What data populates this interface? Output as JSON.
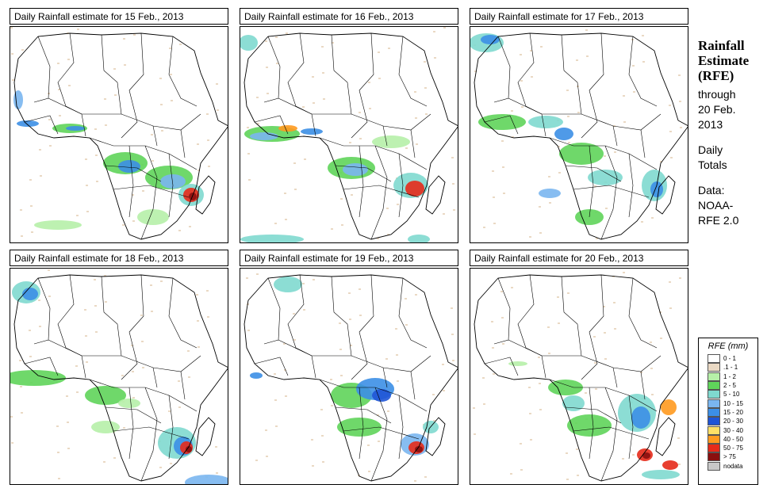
{
  "panels": [
    {
      "title": "Daily Rainfall estimate for  15 Feb., 2013",
      "key": "p15"
    },
    {
      "title": "Daily Rainfall estimate for  16 Feb., 2013",
      "key": "p16"
    },
    {
      "title": "Daily Rainfall estimate for  17 Feb., 2013",
      "key": "p17"
    },
    {
      "title": "Daily Rainfall estimate for  18 Feb., 2013",
      "key": "p18"
    },
    {
      "title": "Daily Rainfall estimate for  19 Feb., 2013",
      "key": "p19"
    },
    {
      "title": "Daily Rainfall estimate for  20 Feb., 2013",
      "key": "p20"
    }
  ],
  "side": {
    "title_line1": "Rainfall",
    "title_line2": "Estimate",
    "title_line3": "(RFE)",
    "through": "through",
    "date_line1": "20 Feb.",
    "date_line2": "2013",
    "daily": "Daily",
    "totals": "Totals",
    "data_label": "Data:",
    "source_line1": "NOAA-",
    "source_line2": "RFE 2.0"
  },
  "legend": {
    "title": "RFE (mm)",
    "items": [
      {
        "label": "0 - 1",
        "color": "#ffffff"
      },
      {
        "label": ".1 - 1",
        "color": "#ead9c4"
      },
      {
        "label": "1 - 2",
        "color": "#b6f0a8"
      },
      {
        "label": "2 - 5",
        "color": "#5fd45a"
      },
      {
        "label": "5 - 10",
        "color": "#7fd9cf"
      },
      {
        "label": "10 - 15",
        "color": "#7ab6f0"
      },
      {
        "label": "15 - 20",
        "color": "#3c8fe6"
      },
      {
        "label": "20 - 30",
        "color": "#1f55d6"
      },
      {
        "label": "30 - 40",
        "color": "#ffe066"
      },
      {
        "label": "40 - 50",
        "color": "#ff9a1f"
      },
      {
        "label": "50 - 75",
        "color": "#e62a1a"
      },
      {
        "label": "> 75",
        "color": "#8a0f0f"
      },
      {
        "label": "nodata",
        "color": "#c8c8c8"
      }
    ]
  }
}
